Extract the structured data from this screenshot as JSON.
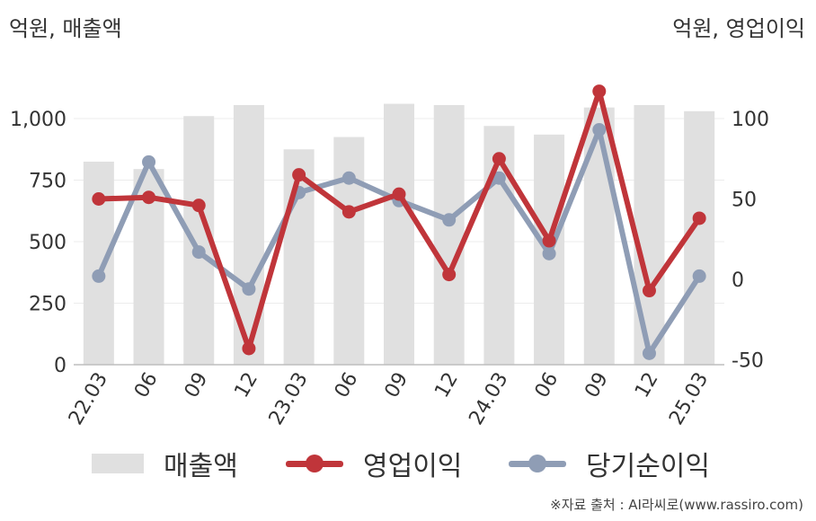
{
  "unit_left": "억원, 매출액",
  "unit_right": "억원, 영업이익",
  "source": "※자료 출처 : AI라씨로(www.rassiro.com)",
  "chart_data": {
    "type": "bar",
    "categories": [
      "22.03",
      "06",
      "09",
      "12",
      "23.03",
      "06",
      "09",
      "12",
      "24.03",
      "06",
      "09",
      "12",
      "25.03"
    ],
    "left_axis": {
      "ticks": [
        0,
        250,
        500,
        750,
        1000
      ],
      "tick_labels": [
        "0",
        "250",
        "500",
        "750",
        "1,000"
      ],
      "range": [
        0,
        1200
      ]
    },
    "right_axis": {
      "ticks": [
        -50,
        0,
        50,
        100
      ],
      "tick_labels": [
        "-50",
        "0",
        "50",
        "100"
      ],
      "range": [
        -55,
        125
      ]
    },
    "series": [
      {
        "name": "매출액",
        "type": "bar",
        "axis": "left",
        "color": "#e0e0e0",
        "values": [
          825,
          795,
          1010,
          1055,
          875,
          925,
          1060,
          1055,
          970,
          935,
          1045,
          1055,
          1030
        ]
      },
      {
        "name": "영업이익",
        "type": "line",
        "axis": "right",
        "color": "#c0353a",
        "values": [
          50,
          51,
          46,
          -43,
          65,
          42,
          53,
          3,
          75,
          24,
          117,
          -7,
          38
        ]
      },
      {
        "name": "당기순이익",
        "type": "line",
        "axis": "right",
        "color": "#8f9db5",
        "values": [
          2,
          73,
          17,
          -6,
          54,
          63,
          49,
          37,
          63,
          16,
          93,
          -46,
          2
        ]
      }
    ],
    "grid": true,
    "legend_position": "bottom"
  }
}
